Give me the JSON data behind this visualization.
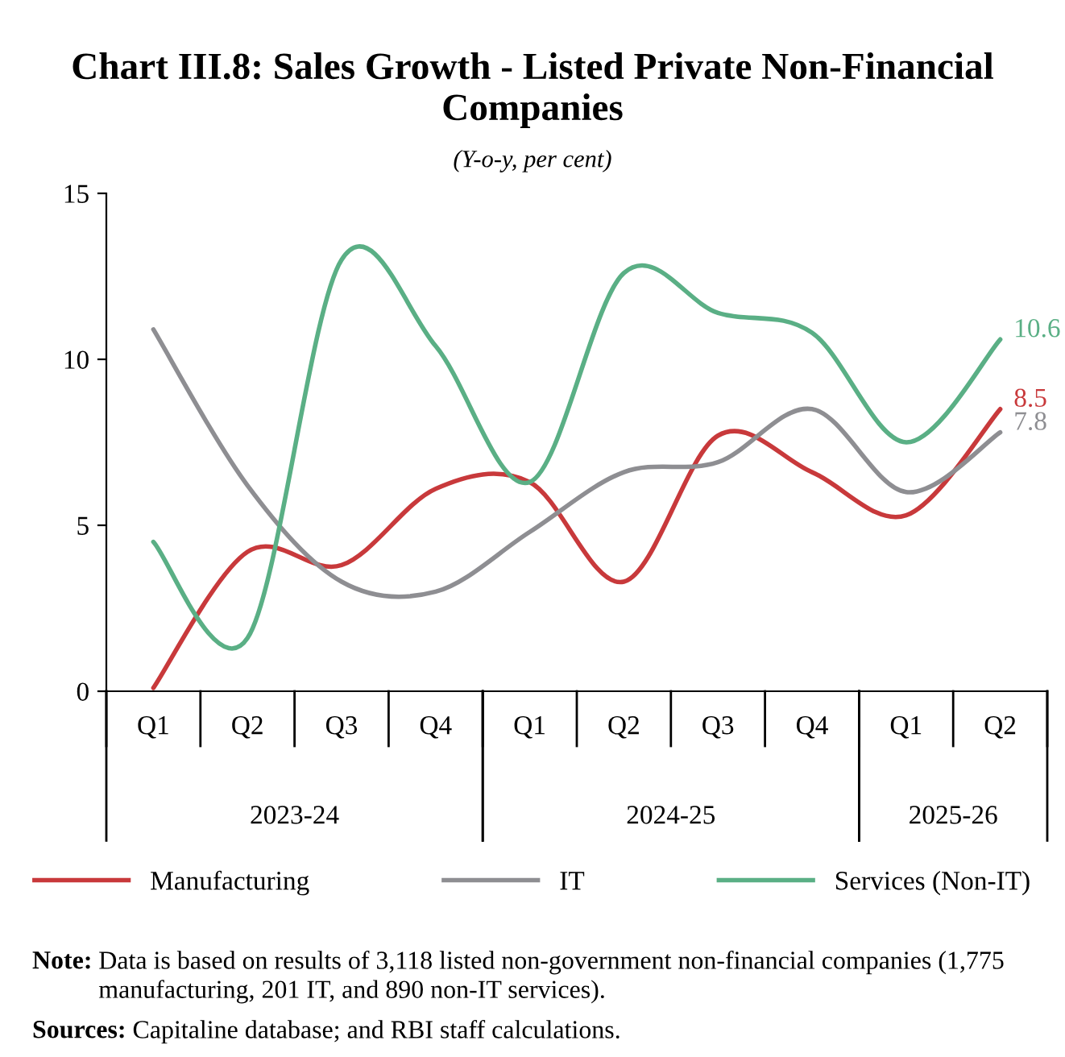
{
  "chart_data": {
    "type": "line",
    "title": "Chart III.8: Sales Growth - Listed Private Non-Financial Companies",
    "subtitle": "(Y-o-y, per cent)",
    "categories": [
      "Q1",
      "Q2",
      "Q3",
      "Q4",
      "Q1",
      "Q2",
      "Q3",
      "Q4",
      "Q1",
      "Q2"
    ],
    "series": [
      {
        "name": "Manufacturing",
        "color": "#c8393b",
        "values": [
          0.1,
          4.2,
          3.8,
          6.1,
          6.3,
          3.3,
          7.7,
          6.6,
          5.3,
          8.5
        ],
        "value_labels": [
          null,
          null,
          null,
          null,
          null,
          null,
          null,
          null,
          null,
          "8.5"
        ]
      },
      {
        "name": "IT",
        "color": "#8e8e92",
        "values": [
          10.9,
          6.2,
          3.3,
          3.0,
          4.8,
          6.6,
          6.9,
          8.5,
          6.0,
          7.8
        ],
        "value_labels": [
          null,
          null,
          null,
          null,
          null,
          null,
          null,
          null,
          null,
          "7.8"
        ]
      },
      {
        "name": "Services (Non-IT)",
        "color": "#5aaf85",
        "values": [
          4.5,
          1.6,
          13.0,
          10.4,
          6.3,
          12.6,
          11.4,
          10.8,
          7.5,
          10.6
        ],
        "value_labels": [
          null,
          null,
          null,
          null,
          null,
          null,
          null,
          null,
          null,
          "10.6"
        ]
      }
    ],
    "ylim": [
      0,
      15
    ],
    "yticks": [
      0,
      5,
      10,
      15
    ],
    "grid": false,
    "legend": "bottom",
    "marker": "none",
    "line_style": "solid",
    "annotations": [
      "2023-24",
      "2024-25",
      "2025-26",
      "Note: Data is based on results of 3,118 listed non-government non-financial companies (1,775 manufacturing, 201 IT, and 890 non-IT services).",
      "Sources: Capitaline database; and RBI staff calculations."
    ]
  }
}
